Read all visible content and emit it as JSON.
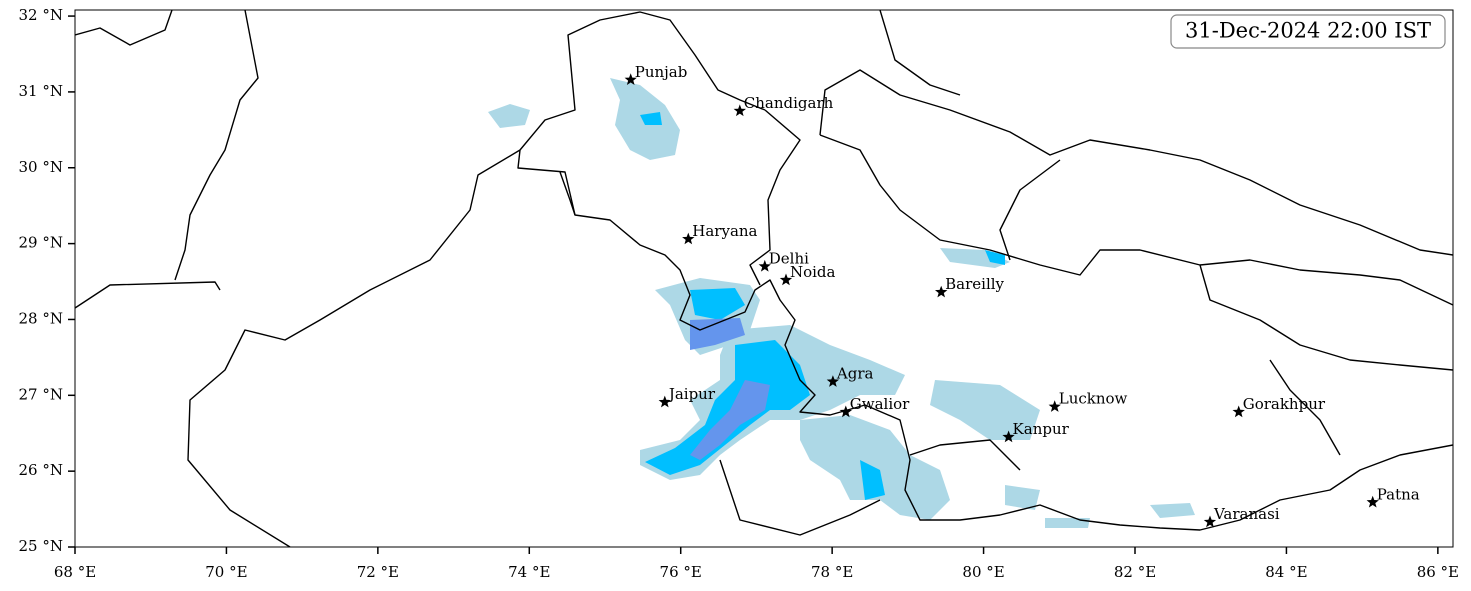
{
  "map": {
    "timestamp": "31-Dec-2024 22:00 IST",
    "xlim": [
      68,
      86.2
    ],
    "ylim": [
      25,
      32.08
    ],
    "xticks": [
      {
        "value": 68,
        "label": "68 °E"
      },
      {
        "value": 70,
        "label": "70 °E"
      },
      {
        "value": 72,
        "label": "72 °E"
      },
      {
        "value": 74,
        "label": "74 °E"
      },
      {
        "value": 76,
        "label": "76 °E"
      },
      {
        "value": 78,
        "label": "78 °E"
      },
      {
        "value": 80,
        "label": "80 °E"
      },
      {
        "value": 82,
        "label": "82 °E"
      },
      {
        "value": 84,
        "label": "84 °E"
      },
      {
        "value": 86,
        "label": "86 °E"
      }
    ],
    "yticks": [
      {
        "value": 25,
        "label": "25 °N"
      },
      {
        "value": 26,
        "label": "26 °N"
      },
      {
        "value": 27,
        "label": "27 °N"
      },
      {
        "value": 28,
        "label": "28 °N"
      },
      {
        "value": 29,
        "label": "29 °N"
      },
      {
        "value": 30,
        "label": "30 °N"
      },
      {
        "value": 31,
        "label": "31 °N"
      },
      {
        "value": 32,
        "label": "32 °N"
      }
    ],
    "cities": [
      {
        "name": "Punjab",
        "lon": 75.34,
        "lat": 31.16
      },
      {
        "name": "Chandigarh",
        "lon": 76.78,
        "lat": 30.75
      },
      {
        "name": "Haryana",
        "lon": 76.1,
        "lat": 29.06
      },
      {
        "name": "Delhi",
        "lon": 77.11,
        "lat": 28.7
      },
      {
        "name": "Noida",
        "lon": 77.39,
        "lat": 28.52
      },
      {
        "name": "Bareilly",
        "lon": 79.44,
        "lat": 28.36
      },
      {
        "name": "Agra",
        "lon": 78.01,
        "lat": 27.18
      },
      {
        "name": "Jaipur",
        "lon": 75.79,
        "lat": 26.91
      },
      {
        "name": "Gwalior",
        "lon": 78.18,
        "lat": 26.78
      },
      {
        "name": "Lucknow",
        "lon": 80.94,
        "lat": 26.85
      },
      {
        "name": "Gorakhpur",
        "lon": 83.37,
        "lat": 26.78
      },
      {
        "name": "Kanpur",
        "lon": 80.33,
        "lat": 26.45
      },
      {
        "name": "Varanasi",
        "lon": 82.99,
        "lat": 25.33
      },
      {
        "name": "Patna",
        "lon": 85.14,
        "lat": 25.59
      }
    ]
  }
}
